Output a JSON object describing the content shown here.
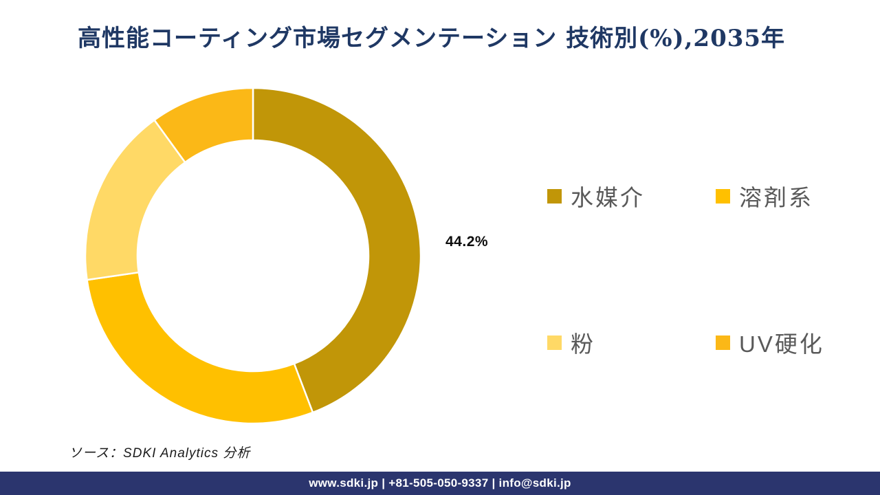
{
  "header": {
    "title": "高性能コーティング市場セグメンテーション 技術別(%),2035年"
  },
  "source": {
    "note": "ソース：SDKI Analytics 分析"
  },
  "footer": {
    "text": "www.sdki.jp | +81-505-050-9337 | info@sdki.jp"
  },
  "colors": {
    "title_text": "#1F3864",
    "legend_text": "#595959",
    "data_label_text": "#0D0D0D",
    "source_text": "#1A1A1A",
    "footer_bg": "#2B356E",
    "footer_text": "#FFFFFF",
    "segment_divider": "#FFFFFF"
  },
  "chart_data": {
    "type": "pie",
    "subtype": "donut",
    "title": "高性能コーティング市場セグメンテーション 技術別(%),2035年",
    "unit": "%",
    "year": "2035",
    "direction": "clockwise",
    "start_angle_deg": 0,
    "inner_radius_ratio": 0.69,
    "legend_position": "right",
    "grid": false,
    "series": [
      {
        "name": "水媒介",
        "value": 44.2,
        "color": "#C19608",
        "label": "44.2%"
      },
      {
        "name": "溶剤系",
        "value": 28.5,
        "color": "#FFC000",
        "label": ""
      },
      {
        "name": "粉",
        "value": 17.3,
        "color": "#FFD966",
        "label": ""
      },
      {
        "name": "UV硬化",
        "value": 10.0,
        "color": "#FBB817",
        "label": ""
      }
    ]
  }
}
